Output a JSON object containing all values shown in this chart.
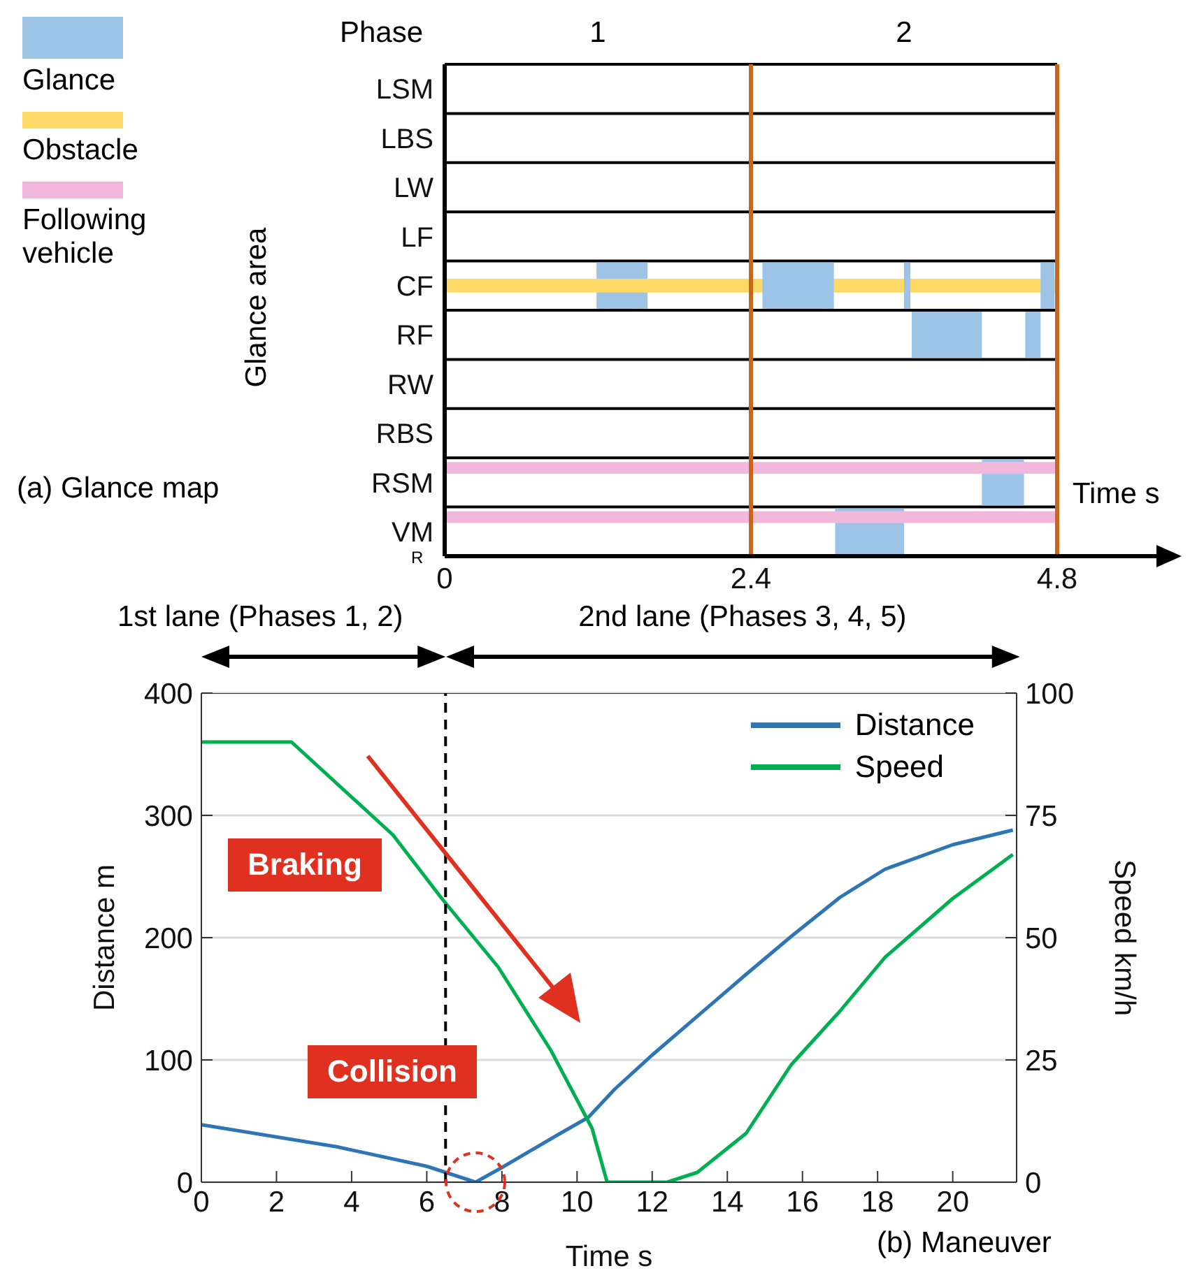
{
  "chart_data": [
    {
      "type": "bar",
      "orientation": "horizontal",
      "xlabel": "Time s",
      "ylabel": "Glance area",
      "categories": [
        "LSM",
        "LBS",
        "LW",
        "LF",
        "CF",
        "RF",
        "RW",
        "RBS",
        "RSM",
        "VM"
      ],
      "series": [
        {
          "name": "Glance",
          "color": "#9dc3e6",
          "base": [
            null,
            null,
            null,
            null,
            1.19,
            3.66,
            null,
            null,
            4.21,
            3.06
          ],
          "values": [
            null,
            null,
            null,
            null,
            0.4,
            0.55,
            null,
            null,
            0.33,
            0.54
          ]
        },
        {
          "name": "Obstacle",
          "color": "#ffd966",
          "base": [
            null,
            null,
            null,
            null,
            0,
            null,
            null,
            null,
            null,
            null
          ],
          "values": [
            null,
            null,
            null,
            null,
            4.8,
            null,
            null,
            null,
            null,
            null
          ]
        },
        {
          "name": "Following vehicle",
          "color": "#f2b8dc",
          "base": [
            null,
            null,
            null,
            null,
            null,
            null,
            null,
            null,
            0,
            0
          ],
          "values": [
            null,
            null,
            null,
            null,
            null,
            null,
            null,
            null,
            4.8,
            4.8
          ]
        },
        {
          "color": "#9dc3e6",
          "base": [
            null,
            null,
            null,
            null,
            2.49,
            4.55,
            null,
            null,
            null,
            null
          ],
          "values": [
            null,
            null,
            null,
            null,
            0.56,
            0.12,
            null,
            null,
            null,
            null
          ]
        },
        {
          "color": "#9dc3e6",
          "base": [
            null,
            null,
            null,
            null,
            3.6,
            null,
            null,
            null,
            null,
            null
          ],
          "values": [
            null,
            null,
            null,
            null,
            0.05,
            null,
            null,
            null,
            null,
            null
          ]
        },
        {
          "color": "#9dc3e6",
          "base": [
            null,
            null,
            null,
            null,
            4.67,
            null,
            null,
            null,
            null,
            null
          ],
          "values": [
            null,
            null,
            null,
            null,
            0.11,
            null,
            null,
            null,
            null,
            null
          ]
        }
      ],
      "xlim": [
        0,
        5.6
      ],
      "xticks": [
        0,
        2.4,
        4.8
      ],
      "grid": "y",
      "legend": "left",
      "ref_lines": [
        {
          "axis": "x",
          "value": 2.4,
          "color": "#c8661e"
        },
        {
          "axis": "x",
          "value": 4.8,
          "color": "#c8661e"
        }
      ],
      "annotations": [
        "(a) Glance map",
        "R",
        "Phase",
        "1",
        "2"
      ]
    },
    {
      "type": "line",
      "xlabel": "Time s",
      "ylabel": "Distance m",
      "y2label": "Speed km/h",
      "series": [
        {
          "name": "Distance",
          "color": "#2e75b6",
          "x": [
            0,
            3.6,
            6.0,
            7.3,
            8.0,
            9.5,
            10.3,
            11.0,
            12.0,
            14.5,
            15.7,
            17.0,
            18.2,
            20.0,
            21.6
          ],
          "values": [
            47,
            29,
            13,
            0,
            12,
            39,
            53,
            76,
            104,
            170,
            201,
            233,
            256,
            276,
            288
          ]
        },
        {
          "name": "Speed",
          "color": "#00b050",
          "axis": "y2",
          "x": [
            0,
            2.4,
            5.1,
            6.4,
            7.9,
            9.3,
            10.4,
            10.8,
            12.4,
            13.2,
            14.5,
            15.7,
            17.0,
            18.2,
            20.0,
            21.6
          ],
          "values": [
            90,
            90,
            71,
            58,
            44,
            27,
            11,
            0,
            0,
            2,
            10,
            24,
            35,
            46,
            58,
            67
          ]
        }
      ],
      "xlim": [
        0,
        21.7
      ],
      "xticks": [
        0,
        2,
        4,
        6,
        8,
        10,
        12,
        14,
        16,
        18,
        20
      ],
      "ylim": [
        0,
        400
      ],
      "yticks": [
        0,
        100,
        200,
        300,
        400
      ],
      "y2lim": [
        0,
        100
      ],
      "y2ticks": [
        0,
        25,
        50,
        75,
        100
      ],
      "grid": "y",
      "legend": "top right",
      "marker": "none",
      "line_style": "solid",
      "ref_lines": [
        {
          "axis": "x",
          "value": 6.5,
          "color": "#000000",
          "line_style": "dashed"
        }
      ],
      "annotations": [
        "1st lane (Phases 1, 2)",
        "2nd lane (Phases 3, 4, 5)",
        "Braking",
        "Collision",
        "(b) Maneuver"
      ]
    }
  ]
}
